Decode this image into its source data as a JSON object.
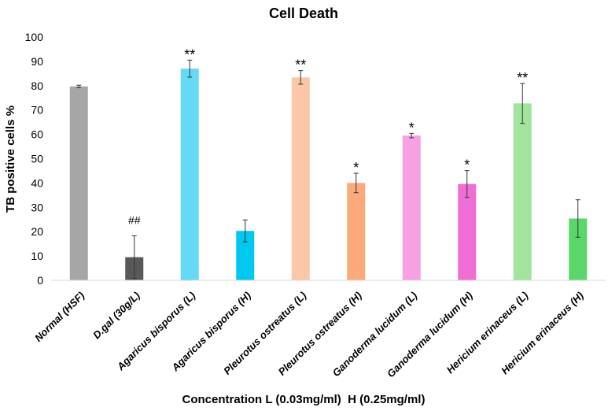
{
  "chart_data": {
    "type": "bar",
    "title": "Cell Death",
    "xlabel": "Concentration L (0.03mg/ml)  H (0.25mg/ml)",
    "ylabel": "TB positive cells  %",
    "ylim": [
      0,
      100
    ],
    "yticks": [
      0,
      10,
      20,
      30,
      40,
      50,
      60,
      70,
      80,
      90,
      100
    ],
    "grid": false,
    "categories": [
      "Normal (HSF)",
      "D.gal (30g/L)",
      "Agaricus bisporus (L)",
      "Agaricus bisporus (H)",
      "Pleurotus ostreatus (L)",
      "Pleurotus ostreatus (H)",
      "Ganoderma lucidum (L)",
      "Ganoderma lucidum (H)",
      "Hericium erinaceus (L)",
      "Hericium erinaceus (H)"
    ],
    "values": [
      79.7,
      9.5,
      87.0,
      20.3,
      83.4,
      40.0,
      59.5,
      39.6,
      72.7,
      25.4
    ],
    "errors": [
      0.5,
      8.8,
      3.5,
      4.5,
      2.8,
      4.0,
      0.9,
      5.5,
      8.2,
      7.7
    ],
    "colors": [
      "#a6a6a6",
      "#595959",
      "#66d9f5",
      "#00c8ee",
      "#fcc6a8",
      "#fca97c",
      "#f7a1e2",
      "#f06ed4",
      "#a0e49e",
      "#5bd66b"
    ],
    "annotations": [
      "",
      "##",
      "**",
      "",
      "**",
      "*",
      "*",
      "*",
      "**",
      ""
    ]
  }
}
